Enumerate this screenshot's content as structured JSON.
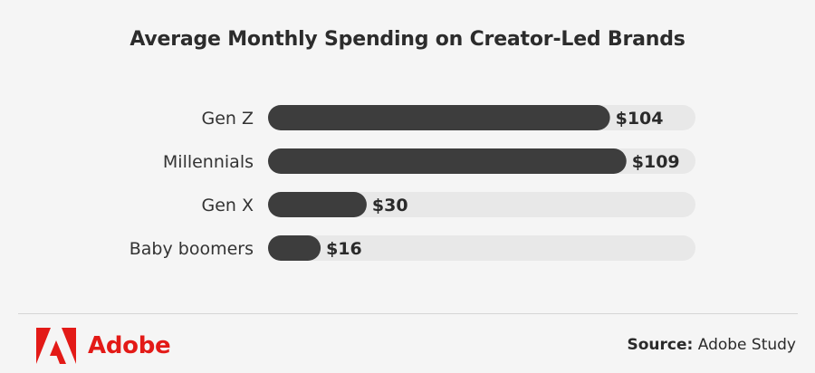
{
  "chart_data": {
    "type": "bar",
    "orientation": "horizontal",
    "title": "Average Monthly Spending on Creator-Led Brands",
    "categories": [
      "Gen Z",
      "Millennials",
      "Gen X",
      "Baby boomers"
    ],
    "values": [
      104,
      109,
      30,
      16
    ],
    "value_labels": [
      "$104",
      "$109",
      "$30",
      "$16"
    ],
    "xlim": [
      0,
      130
    ],
    "grid": false,
    "colors": {
      "bar": "#3d3d3d",
      "track": "#e8e8e8",
      "label": "#333333"
    }
  },
  "footer": {
    "brand_name": "Adobe",
    "brand_color": "#e31a17",
    "logo_icon": "adobe-logo-icon",
    "source_label": "Source:",
    "source_value": "Adobe Study"
  }
}
